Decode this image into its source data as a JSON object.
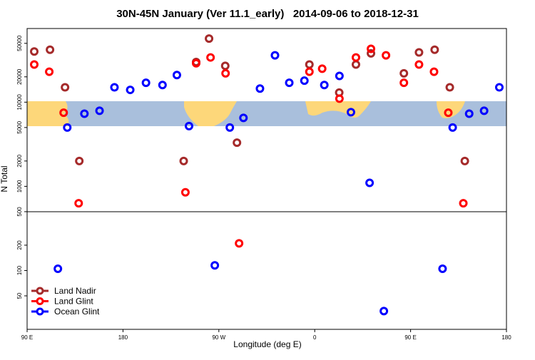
{
  "chart_data": {
    "type": "scatter",
    "title": "30N-45N January (Ver 11.1_early)   2014-09-06 to 2018-12-31",
    "x_label": "Longitude (deg E)",
    "y_label": "N Total",
    "log_y": true,
    "xlim": [
      90,
      540
    ],
    "ylim": [
      20,
      75000
    ],
    "xticks": [
      {
        "value": 90,
        "label": "90 E"
      },
      180,
      {
        "value": 270,
        "label": "90 W"
      },
      {
        "value": 360,
        "label": "0"
      },
      {
        "value": 450,
        "label": "90 E"
      },
      {
        "value": 540,
        "label": "180"
      }
    ],
    "yticks": [
      50,
      100,
      200,
      500,
      1000,
      2000,
      5000,
      10000,
      20000,
      50000
    ],
    "reference_line": 500,
    "legend": "bottom-left",
    "series": [
      {
        "name": "Land Nadir",
        "color": "#a52a2a",
        "x": [
          96.7,
          111.5,
          125.6,
          139,
          237,
          248.7,
          260.8,
          276,
          287,
          355,
          383,
          398.7,
          412.8,
          443.7,
          457.9,
          472.6,
          486.8,
          500.9
        ],
        "values": [
          40000,
          42000,
          15000,
          2000,
          2000,
          30000,
          57000,
          27000,
          3300,
          28000,
          13000,
          28000,
          38000,
          22000,
          39000,
          42000,
          15000,
          2000
        ]
      },
      {
        "name": "Land Glint",
        "color": "#ff0000",
        "x": [
          96.7,
          110.8,
          124.3,
          138.4,
          248.7,
          238.6,
          262.2,
          276.3,
          289,
          355,
          367,
          383.2,
          398.7,
          412.8,
          426.9,
          443.7,
          457.9,
          472,
          485.4,
          499.5
        ],
        "values": [
          28000,
          23000,
          7500,
          630,
          29000,
          850,
          34000,
          22000,
          210,
          23000,
          25000,
          11000,
          34000,
          43000,
          36000,
          17000,
          28000,
          23000,
          7500,
          630
        ]
      },
      {
        "name": "Ocean Glint",
        "color": "#0000ff",
        "x": [
          118.9,
          127.7,
          143.8,
          158,
          172,
          186.8,
          201.6,
          217.1,
          230.6,
          242,
          266.2,
          280.3,
          293.1,
          308.6,
          322.7,
          336.1,
          350.3,
          369,
          383.2,
          394,
          411.5,
          424.9,
          480,
          489.5,
          505,
          519,
          533.3
        ],
        "values": [
          105,
          5000,
          7300,
          7900,
          15000,
          14000,
          17000,
          16000,
          21000,
          5200,
          115,
          5000,
          6500,
          14500,
          36000,
          17000,
          18000,
          16000,
          20500,
          7600,
          1100,
          33,
          105,
          5000,
          7300,
          7900,
          15000
        ]
      }
    ]
  }
}
